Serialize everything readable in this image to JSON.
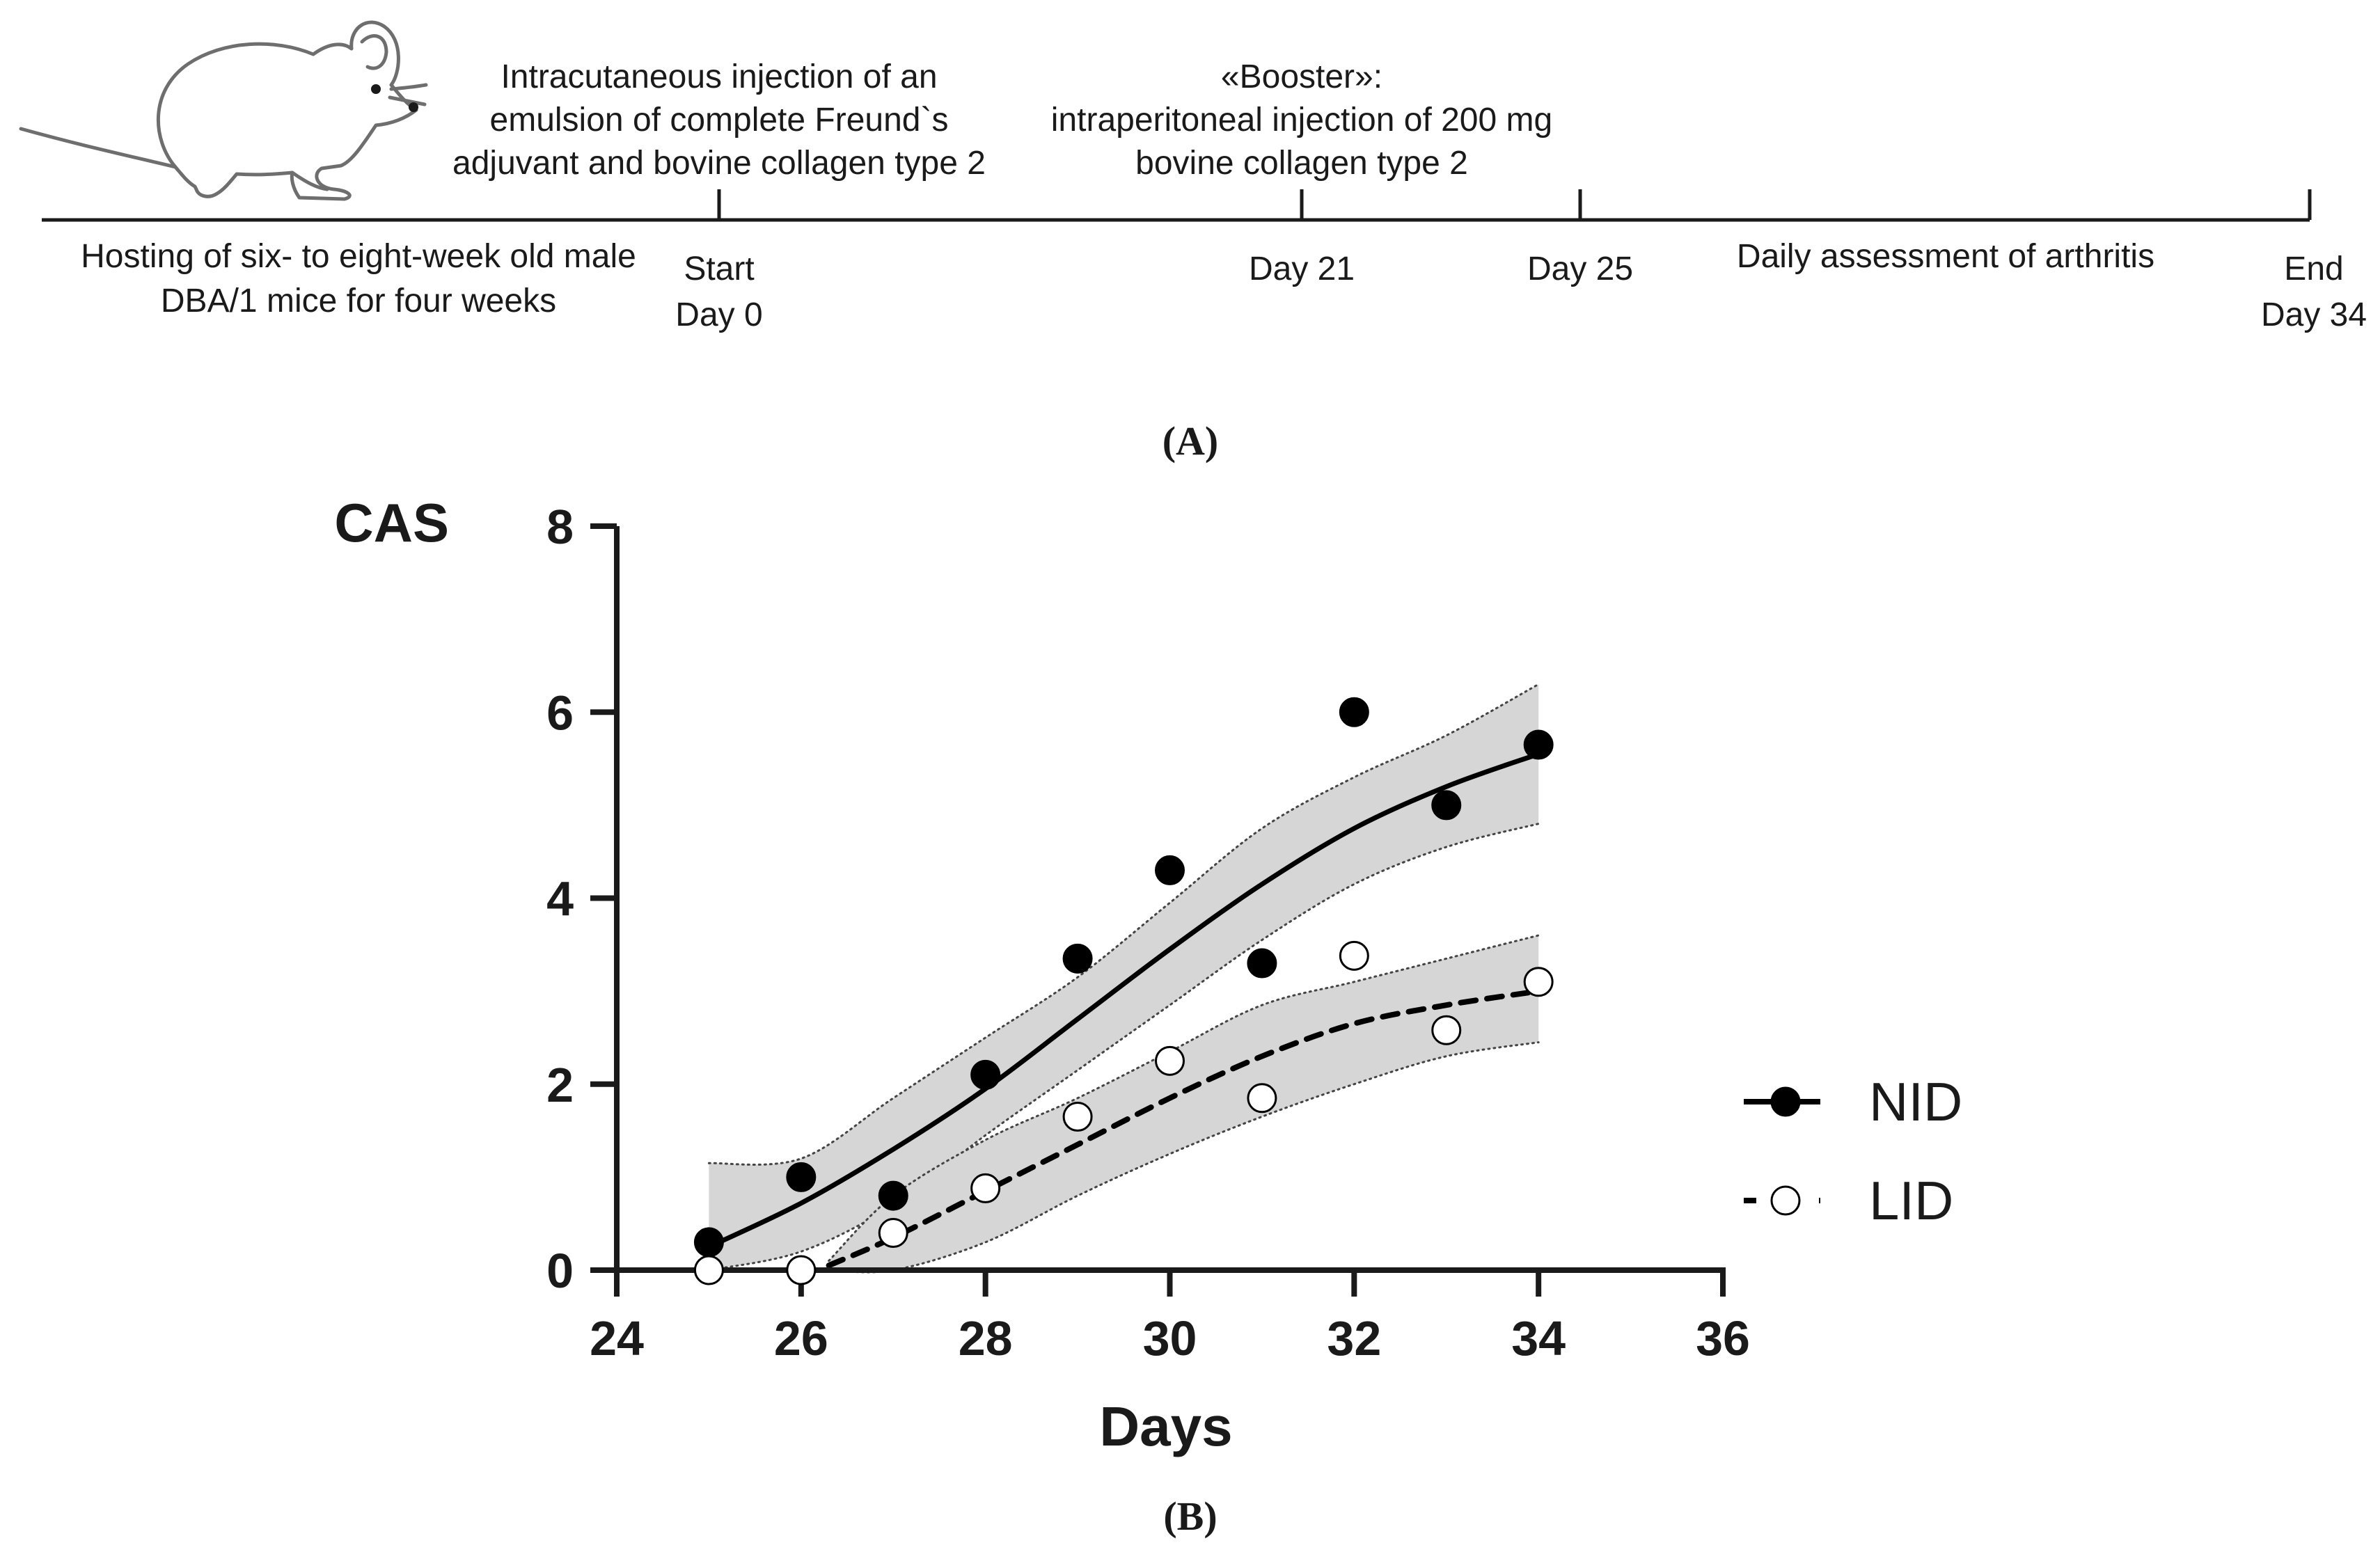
{
  "panel_a": {
    "caption": "(A)",
    "mouse_icon": "mouse-icon",
    "events_above": [
      {
        "day": 0,
        "lines": [
          "Intracutaneous injection of an",
          "emulsion of complete Freund`s",
          "adjuvant and bovine collagen type 2"
        ]
      },
      {
        "day": 21,
        "lines": [
          "«Booster»:",
          "intraperitoneal injection of 200 mg",
          "bovine collagen type 2"
        ]
      }
    ],
    "markers_below": [
      {
        "day": 0,
        "lines": [
          "Start",
          "Day 0"
        ]
      },
      {
        "day": 21,
        "lines": [
          "Day 21"
        ]
      },
      {
        "day": 25,
        "lines": [
          "Day 25"
        ]
      },
      {
        "day": 34,
        "lines": [
          "End",
          "Day 34"
        ]
      }
    ],
    "descriptions_below": [
      {
        "segment": "before-start",
        "lines": [
          "Hosting of six- to eight-week old male",
          "DBA/1 mice for four weeks"
        ]
      },
      {
        "segment": "day25-to-end",
        "lines": [
          "Daily assessment of arthritis"
        ]
      }
    ]
  },
  "panel_b": {
    "caption": "(B)"
  },
  "chart_data": {
    "type": "scatter",
    "title": "",
    "xlabel": "Days",
    "ylabel": "CAS",
    "xlim": [
      24,
      36
    ],
    "ylim": [
      0,
      8
    ],
    "xticks": [
      24,
      26,
      28,
      30,
      32,
      34,
      36
    ],
    "yticks": [
      0,
      2,
      4,
      6,
      8
    ],
    "legend_position": "right",
    "grid": false,
    "band_color": "#d6d6d6",
    "series": [
      {
        "name": "NID",
        "marker": "filled-circle",
        "line": "solid",
        "color": "#000000",
        "x": [
          25,
          26,
          27,
          28,
          29,
          30,
          31,
          32,
          33,
          34
        ],
        "y": [
          0.3,
          1.0,
          0.8,
          2.1,
          3.35,
          4.3,
          3.3,
          6.0,
          5.0,
          5.65
        ],
        "fit": {
          "x": [
            25,
            26,
            27,
            28,
            29,
            30,
            31,
            32,
            33,
            34
          ],
          "y": [
            0.25,
            0.72,
            1.3,
            1.95,
            2.7,
            3.45,
            4.15,
            4.75,
            5.2,
            5.55
          ],
          "lower": [
            0.0,
            0.2,
            0.7,
            1.45,
            2.15,
            2.85,
            3.55,
            4.15,
            4.55,
            4.8
          ],
          "upper": [
            1.15,
            1.2,
            1.85,
            2.5,
            3.15,
            3.95,
            4.75,
            5.3,
            5.75,
            6.3
          ]
        }
      },
      {
        "name": "LID",
        "marker": "open-circle",
        "line": "dashed",
        "color": "#000000",
        "x": [
          25,
          26,
          27,
          28,
          29,
          30,
          31,
          32,
          33,
          34
        ],
        "y": [
          0.0,
          0.0,
          0.4,
          0.88,
          1.65,
          2.25,
          1.85,
          3.38,
          2.58,
          3.1
        ],
        "fit": {
          "x": [
            26.3,
            27,
            28,
            29,
            30,
            31,
            32,
            33,
            34
          ],
          "y": [
            0.05,
            0.35,
            0.85,
            1.35,
            1.85,
            2.3,
            2.65,
            2.85,
            3.0
          ],
          "lower": [
            0.0,
            0.0,
            0.3,
            0.8,
            1.25,
            1.65,
            2.0,
            2.3,
            2.45
          ],
          "upper": [
            0.1,
            0.8,
            1.4,
            1.85,
            2.35,
            2.85,
            3.1,
            3.35,
            3.6
          ]
        }
      }
    ]
  }
}
